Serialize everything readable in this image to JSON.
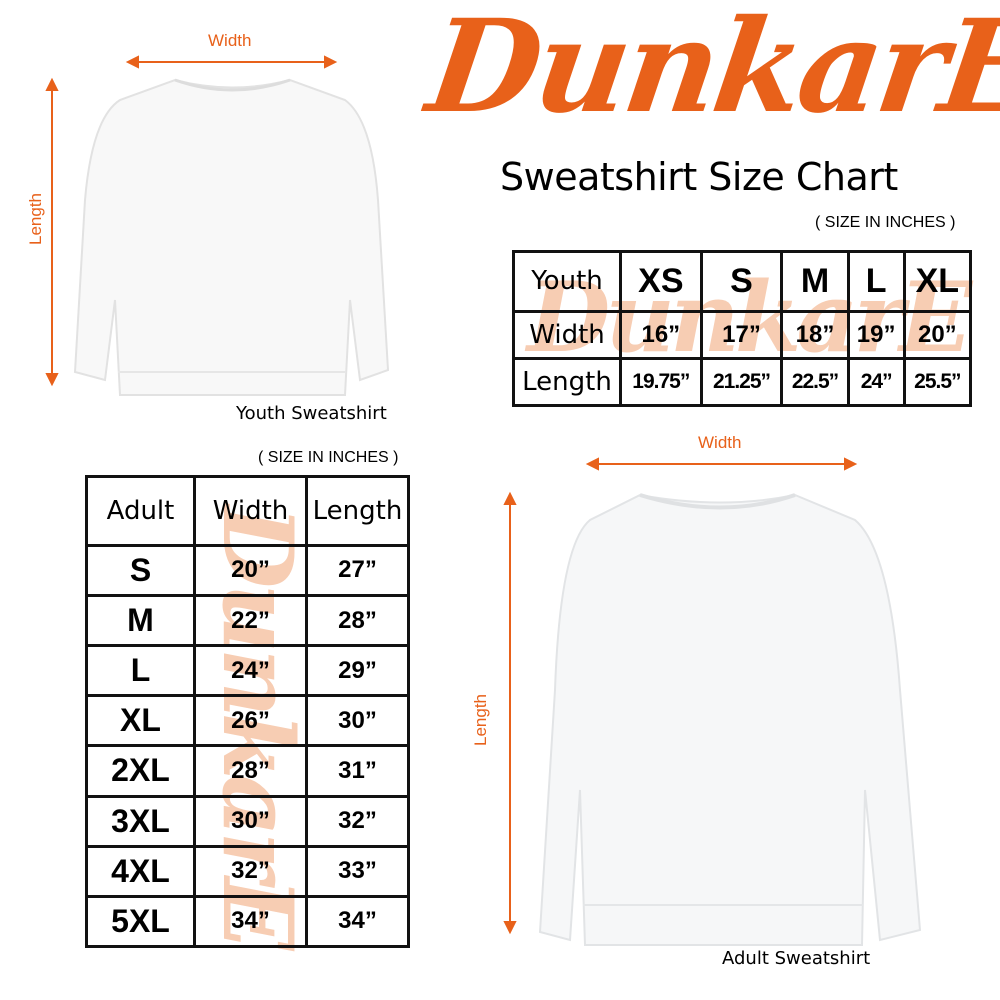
{
  "brand": {
    "logo": "DunkarE",
    "title": "Sweatshirt Size Chart",
    "accent": "#e8611a"
  },
  "youth": {
    "illustration_caption": "Youth Sweatshirt",
    "width_label": "Width",
    "length_label": "Length",
    "note": "( SIZE IN INCHES )",
    "table": {
      "headers": [
        "Youth",
        "XS",
        "S",
        "M",
        "L",
        "XL"
      ],
      "rows": [
        {
          "label": "Width",
          "values": [
            "16”",
            "17”",
            "18”",
            "19”",
            "20”"
          ]
        },
        {
          "label": "Length",
          "values": [
            "19.75”",
            "21.25”",
            "22.5”",
            "24”",
            "25.5”"
          ]
        }
      ]
    }
  },
  "adult": {
    "illustration_caption": "Adult Sweatshirt",
    "width_label": "Width",
    "length_label": "Length",
    "note": "( SIZE IN INCHES )",
    "table": {
      "headers": [
        "Adult",
        "Width",
        "Length"
      ],
      "rows": [
        [
          "S",
          "20”",
          "27”"
        ],
        [
          "M",
          "22”",
          "28”"
        ],
        [
          "L",
          "24”",
          "29”"
        ],
        [
          "XL",
          "26”",
          "30”"
        ],
        [
          "2XL",
          "28”",
          "31”"
        ],
        [
          "3XL",
          "30”",
          "32”"
        ],
        [
          "4XL",
          "32”",
          "33”"
        ],
        [
          "5XL",
          "34”",
          "34”"
        ]
      ]
    }
  }
}
